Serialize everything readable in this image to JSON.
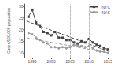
{
  "chart_data": {
    "type": "line",
    "ylabel": "Cases/100,000 population",
    "xlim": [
      1993,
      2016
    ],
    "ylim": [
      8,
      31
    ],
    "xticks": [
      1995,
      2000,
      2005,
      2010,
      2015
    ],
    "yticks": [
      10,
      15,
      20,
      25,
      30
    ],
    "grid": false,
    "legend": "upper right",
    "series": [
      {
        "name": "NYC",
        "color": "#444444",
        "marker": "square",
        "line_style": "solid",
        "x": [
          1994,
          1995,
          1996,
          1997,
          1998,
          1999,
          2000,
          2001,
          2002,
          2003,
          2004,
          2005,
          2006,
          2007,
          2008,
          2009,
          2010,
          2011,
          2012,
          2013,
          2014,
          2015
        ],
        "values": [
          25.5,
          28.5,
          23.0,
          21.5,
          19.0,
          18.5,
          17.5,
          19.0,
          16.5,
          16.5,
          15.5,
          15.5,
          14.5,
          14.0,
          15.0,
          14.5,
          16.0,
          14.5,
          13.5,
          13.0,
          12.0,
          11.5
        ]
      },
      {
        "name": "NYS",
        "color": "#999999",
        "marker": "circle",
        "line_style": "solid",
        "x": [
          1994,
          1995,
          1996,
          1997,
          1998,
          1999,
          2000,
          2001,
          2002,
          2003,
          2004,
          2005,
          2006,
          2007,
          2008,
          2009,
          2010,
          2011,
          2012,
          2013,
          2014,
          2015
        ],
        "values": [
          18.5,
          18.0,
          16.5,
          15.5,
          14.5,
          14.0,
          12.5,
          12.5,
          12.0,
          12.5,
          12.0,
          12.5,
          13.5,
          13.0,
          13.0,
          12.5,
          13.0,
          12.0,
          11.0,
          10.5,
          10.5,
          10.0
        ]
      },
      {
        "color": "#444444",
        "line_style": "dashed",
        "x": [
          1993.5,
          2015.5
        ],
        "values": [
          23.6107,
          10.4802
        ]
      },
      {
        "color": "#999999",
        "line_style": "dashed",
        "x": [
          1993.5,
          2015.5
        ],
        "values": [
          16.424,
          9.9396
        ]
      }
    ],
    "vlines": [
      {
        "x": 2005,
        "color": "#aaaaaa",
        "line_style": "dashed"
      },
      {
        "x": 2010,
        "color": "#aaaaaa",
        "line_style": "dashed"
      }
    ]
  }
}
